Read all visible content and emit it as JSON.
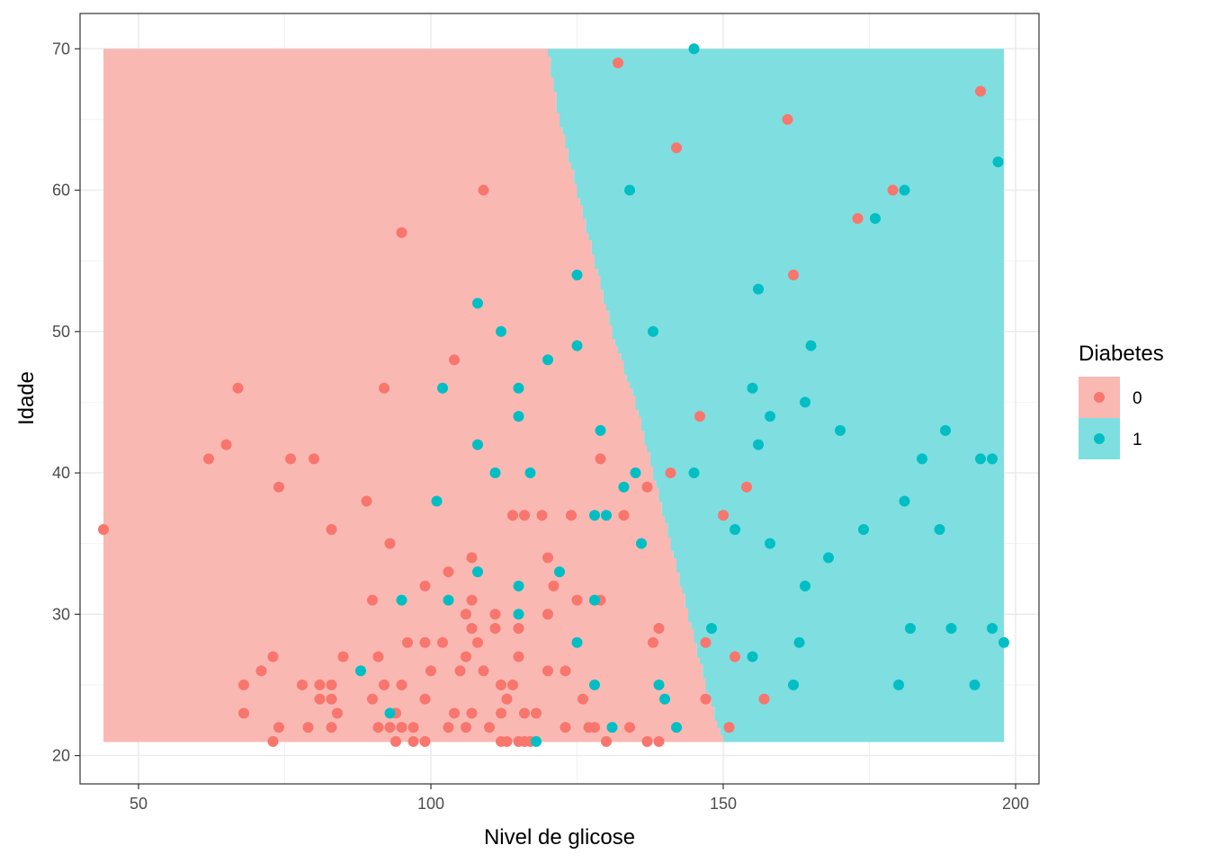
{
  "chart_data": {
    "type": "scatter",
    "title": "",
    "xlabel": "Nivel de glicose",
    "ylabel": "Idade",
    "xlim": [
      40,
      204
    ],
    "ylim": [
      18,
      72.5
    ],
    "x_ticks": [
      50,
      100,
      150,
      200
    ],
    "y_ticks": [
      20,
      30,
      40,
      50,
      60,
      70
    ],
    "grid": true,
    "legend": {
      "title": "Diabetes",
      "position": "right",
      "entries": [
        {
          "label": "0",
          "point_color": "#F8766D",
          "region_color": "#FAB8B3"
        },
        {
          "label": "1",
          "point_color": "#00BFC4",
          "region_color": "#7FDEE0"
        }
      ]
    },
    "decision_region": {
      "x_range": [
        44,
        198
      ],
      "y_range": [
        21,
        70
      ],
      "boundary": [
        [
          150,
          21
        ],
        [
          147,
          25
        ],
        [
          144,
          30
        ],
        [
          141,
          35
        ],
        [
          138,
          40
        ],
        [
          135,
          45
        ],
        [
          131,
          50
        ],
        [
          128,
          55
        ],
        [
          125,
          60
        ],
        [
          122,
          65
        ],
        [
          120,
          70
        ]
      ]
    },
    "series": [
      {
        "name": "0",
        "color": "#F8766D",
        "points": [
          [
            44,
            36
          ],
          [
            62,
            41
          ],
          [
            65,
            42
          ],
          [
            67,
            46
          ],
          [
            68,
            25
          ],
          [
            68,
            23
          ],
          [
            71,
            26
          ],
          [
            73,
            27
          ],
          [
            73,
            21
          ],
          [
            74,
            39
          ],
          [
            74,
            22
          ],
          [
            76,
            41
          ],
          [
            78,
            25
          ],
          [
            79,
            22
          ],
          [
            80,
            41
          ],
          [
            81,
            25
          ],
          [
            81,
            24
          ],
          [
            83,
            25
          ],
          [
            83,
            24
          ],
          [
            83,
            22
          ],
          [
            83,
            36
          ],
          [
            84,
            23
          ],
          [
            85,
            27
          ],
          [
            89,
            38
          ],
          [
            90,
            31
          ],
          [
            90,
            24
          ],
          [
            91,
            27
          ],
          [
            91,
            22
          ],
          [
            92,
            46
          ],
          [
            92,
            25
          ],
          [
            93,
            35
          ],
          [
            93,
            22
          ],
          [
            94,
            23
          ],
          [
            94,
            21
          ],
          [
            95,
            57
          ],
          [
            95,
            25
          ],
          [
            95,
            22
          ],
          [
            96,
            28
          ],
          [
            97,
            22
          ],
          [
            97,
            21
          ],
          [
            99,
            32
          ],
          [
            99,
            28
          ],
          [
            99,
            24
          ],
          [
            99,
            21
          ],
          [
            100,
            26
          ],
          [
            102,
            28
          ],
          [
            103,
            33
          ],
          [
            103,
            22
          ],
          [
            104,
            48
          ],
          [
            104,
            23
          ],
          [
            105,
            26
          ],
          [
            106,
            30
          ],
          [
            106,
            27
          ],
          [
            106,
            22
          ],
          [
            107,
            34
          ],
          [
            107,
            31
          ],
          [
            107,
            29
          ],
          [
            107,
            23
          ],
          [
            108,
            28
          ],
          [
            109,
            60
          ],
          [
            109,
            26
          ],
          [
            110,
            22
          ],
          [
            111,
            30
          ],
          [
            111,
            29
          ],
          [
            112,
            25
          ],
          [
            112,
            23
          ],
          [
            112,
            21
          ],
          [
            113,
            24
          ],
          [
            113,
            21
          ],
          [
            114,
            37
          ],
          [
            114,
            25
          ],
          [
            115,
            29
          ],
          [
            115,
            27
          ],
          [
            115,
            21
          ],
          [
            116,
            37
          ],
          [
            116,
            23
          ],
          [
            116,
            21
          ],
          [
            117,
            21
          ],
          [
            118,
            23
          ],
          [
            119,
            37
          ],
          [
            120,
            34
          ],
          [
            120,
            30
          ],
          [
            120,
            26
          ],
          [
            121,
            32
          ],
          [
            123,
            26
          ],
          [
            123,
            22
          ],
          [
            124,
            37
          ],
          [
            125,
            31
          ],
          [
            126,
            24
          ],
          [
            127,
            22
          ],
          [
            128,
            31
          ],
          [
            128,
            22
          ],
          [
            129,
            41
          ],
          [
            129,
            31
          ],
          [
            130,
            21
          ],
          [
            132,
            69
          ],
          [
            133,
            37
          ],
          [
            134,
            22
          ],
          [
            137,
            39
          ],
          [
            137,
            21
          ],
          [
            138,
            28
          ],
          [
            139,
            29
          ],
          [
            139,
            21
          ],
          [
            141,
            40
          ],
          [
            142,
            63
          ],
          [
            146,
            44
          ],
          [
            147,
            28
          ],
          [
            147,
            24
          ],
          [
            150,
            37
          ],
          [
            151,
            22
          ],
          [
            152,
            27
          ],
          [
            154,
            39
          ],
          [
            157,
            24
          ],
          [
            161,
            65
          ],
          [
            162,
            54
          ],
          [
            173,
            58
          ],
          [
            179,
            60
          ],
          [
            194,
            67
          ]
        ]
      },
      {
        "name": "1",
        "color": "#00BFC4",
        "points": [
          [
            88,
            26
          ],
          [
            93,
            23
          ],
          [
            95,
            31
          ],
          [
            101,
            38
          ],
          [
            102,
            46
          ],
          [
            103,
            31
          ],
          [
            108,
            52
          ],
          [
            108,
            42
          ],
          [
            108,
            33
          ],
          [
            111,
            40
          ],
          [
            112,
            50
          ],
          [
            115,
            46
          ],
          [
            115,
            44
          ],
          [
            115,
            32
          ],
          [
            115,
            30
          ],
          [
            117,
            40
          ],
          [
            118,
            21
          ],
          [
            120,
            48
          ],
          [
            122,
            33
          ],
          [
            125,
            54
          ],
          [
            125,
            49
          ],
          [
            125,
            28
          ],
          [
            128,
            37
          ],
          [
            128,
            31
          ],
          [
            128,
            25
          ],
          [
            129,
            43
          ],
          [
            130,
            37
          ],
          [
            131,
            22
          ],
          [
            133,
            39
          ],
          [
            134,
            60
          ],
          [
            135,
            40
          ],
          [
            136,
            35
          ],
          [
            138,
            50
          ],
          [
            139,
            25
          ],
          [
            140,
            24
          ],
          [
            142,
            22
          ],
          [
            145,
            70
          ],
          [
            145,
            40
          ],
          [
            148,
            29
          ],
          [
            152,
            36
          ],
          [
            155,
            46
          ],
          [
            155,
            27
          ],
          [
            156,
            53
          ],
          [
            156,
            42
          ],
          [
            158,
            44
          ],
          [
            158,
            35
          ],
          [
            162,
            25
          ],
          [
            163,
            28
          ],
          [
            164,
            45
          ],
          [
            164,
            32
          ],
          [
            165,
            49
          ],
          [
            168,
            34
          ],
          [
            170,
            43
          ],
          [
            174,
            36
          ],
          [
            176,
            58
          ],
          [
            180,
            25
          ],
          [
            181,
            60
          ],
          [
            181,
            38
          ],
          [
            182,
            29
          ],
          [
            184,
            41
          ],
          [
            187,
            36
          ],
          [
            188,
            43
          ],
          [
            189,
            29
          ],
          [
            193,
            25
          ],
          [
            194,
            41
          ],
          [
            196,
            41
          ],
          [
            196,
            29
          ],
          [
            197,
            62
          ],
          [
            198,
            28
          ]
        ]
      }
    ]
  }
}
